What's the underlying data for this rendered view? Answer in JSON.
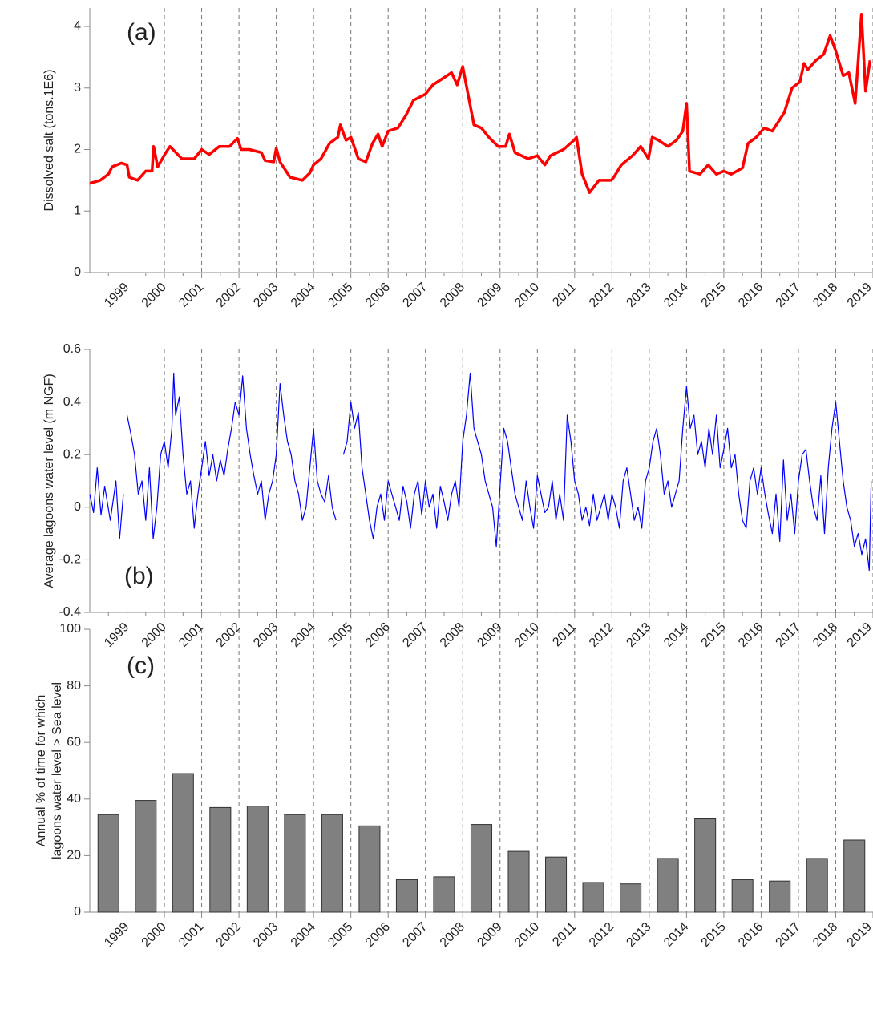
{
  "chart_data": [
    {
      "type": "line",
      "annotation": "(a)",
      "ylabel": [
        "Dissolved salt (tons.1E6)"
      ],
      "color": "#ff0000",
      "xlim": [
        1998,
        2019
      ],
      "xticks": [
        1999,
        2000,
        2001,
        2002,
        2003,
        2004,
        2005,
        2006,
        2007,
        2008,
        2009,
        2010,
        2011,
        2012,
        2013,
        2014,
        2015,
        2016,
        2017,
        2018,
        2019
      ],
      "ylim": [
        0,
        4.3
      ],
      "yticks": [
        0,
        1,
        2,
        3,
        4
      ],
      "grid": true,
      "x": [
        1998.0,
        1998.28,
        1998.5,
        1998.6,
        1998.85,
        1999.0,
        1999.06,
        1999.28,
        1999.5,
        1999.67,
        1999.71,
        1999.82,
        2000.04,
        2000.15,
        2000.47,
        2000.8,
        2001.0,
        2001.2,
        2001.47,
        2001.75,
        2001.96,
        2002.06,
        2002.28,
        2002.6,
        2002.7,
        2002.93,
        2003.0,
        2003.1,
        2003.37,
        2003.7,
        2003.9,
        2004.0,
        2004.2,
        2004.43,
        2004.65,
        2004.72,
        2004.87,
        2005.0,
        2005.2,
        2005.4,
        2005.58,
        2005.73,
        2005.84,
        2006.0,
        2006.26,
        2006.47,
        2006.68,
        2007.0,
        2007.2,
        2007.7,
        2007.85,
        2008.0,
        2008.3,
        2008.5,
        2008.7,
        2008.95,
        2009.15,
        2009.25,
        2009.4,
        2009.75,
        2010.0,
        2010.2,
        2010.35,
        2010.7,
        2010.98,
        2011.05,
        2011.2,
        2011.4,
        2011.65,
        2011.98,
        2012.05,
        2012.25,
        2012.55,
        2012.77,
        2012.98,
        2013.08,
        2013.25,
        2013.5,
        2013.73,
        2013.9,
        2014.0,
        2014.08,
        2014.36,
        2014.58,
        2014.8,
        2015.0,
        2015.2,
        2015.5,
        2015.65,
        2015.87,
        2016.08,
        2016.3,
        2016.62,
        2016.83,
        2017.04,
        2017.15,
        2017.25,
        2017.47,
        2017.68,
        2017.85,
        2018.0,
        2018.2,
        2018.35,
        2018.52,
        2018.69,
        2018.8,
        2018.92
      ],
      "values": [
        1.45,
        1.5,
        1.6,
        1.72,
        1.78,
        1.75,
        1.55,
        1.5,
        1.65,
        1.65,
        2.05,
        1.72,
        1.95,
        2.05,
        1.85,
        1.85,
        2.0,
        1.92,
        2.05,
        2.05,
        2.18,
        2.0,
        2.0,
        1.95,
        1.82,
        1.8,
        2.02,
        1.8,
        1.55,
        1.5,
        1.62,
        1.75,
        1.85,
        2.1,
        2.2,
        2.4,
        2.15,
        2.2,
        1.85,
        1.8,
        2.1,
        2.25,
        2.05,
        2.3,
        2.35,
        2.55,
        2.8,
        2.9,
        3.05,
        3.25,
        3.05,
        3.35,
        2.4,
        2.35,
        2.2,
        2.05,
        2.05,
        2.25,
        1.95,
        1.85,
        1.9,
        1.75,
        1.9,
        2.0,
        2.15,
        2.2,
        1.6,
        1.3,
        1.5,
        1.5,
        1.55,
        1.75,
        1.9,
        2.05,
        1.85,
        2.2,
        2.15,
        2.05,
        2.15,
        2.3,
        2.75,
        1.65,
        1.6,
        1.75,
        1.6,
        1.65,
        1.6,
        1.7,
        2.1,
        2.2,
        2.35,
        2.3,
        2.6,
        3.0,
        3.1,
        3.4,
        3.3,
        3.45,
        3.55,
        3.85,
        3.6,
        3.2,
        3.25,
        2.75,
        4.2,
        2.95,
        3.45
      ]
    },
    {
      "type": "line",
      "annotation": "(b)",
      "ylabel": [
        "Average lagoons water level (m NGF)"
      ],
      "color": "#0000ff",
      "xlim": [
        1998,
        2019
      ],
      "xticks": [
        1999,
        2000,
        2001,
        2002,
        2003,
        2004,
        2005,
        2006,
        2007,
        2008,
        2009,
        2010,
        2011,
        2012,
        2013,
        2014,
        2015,
        2016,
        2017,
        2018,
        2019
      ],
      "ylim": [
        -0.4,
        0.6
      ],
      "yticks": [
        -0.4,
        -0.2,
        0,
        0.2,
        0.4,
        0.6
      ],
      "grid": true,
      "x": [
        1998.0,
        1998.1,
        1998.2,
        1998.3,
        1998.4,
        1998.55,
        1998.7,
        1998.8,
        1998.9,
        1998.95,
        1999.0,
        1999.1,
        1999.2,
        1999.3,
        1999.4,
        1999.5,
        1999.6,
        1999.7,
        1999.8,
        1999.9,
        2000.0,
        2000.1,
        2000.2,
        2000.25,
        2000.3,
        2000.4,
        2000.5,
        2000.6,
        2000.7,
        2000.8,
        2000.9,
        2001.0,
        2001.1,
        2001.2,
        2001.3,
        2001.4,
        2001.5,
        2001.6,
        2001.7,
        2001.8,
        2001.9,
        2002.0,
        2002.1,
        2002.2,
        2002.3,
        2002.4,
        2002.5,
        2002.6,
        2002.7,
        2002.8,
        2002.9,
        2003.0,
        2003.1,
        2003.2,
        2003.3,
        2003.4,
        2003.5,
        2003.6,
        2003.7,
        2003.8,
        2003.9,
        2004.0,
        2004.1,
        2004.2,
        2004.3,
        2004.4,
        2004.5,
        2004.6,
        2004.7,
        2004.8,
        2004.9,
        2005.0,
        2005.1,
        2005.2,
        2005.3,
        2005.4,
        2005.5,
        2005.6,
        2005.7,
        2005.8,
        2005.9,
        2006.0,
        2006.1,
        2006.2,
        2006.3,
        2006.4,
        2006.5,
        2006.6,
        2006.7,
        2006.8,
        2006.9,
        2007.0,
        2007.1,
        2007.2,
        2007.3,
        2007.4,
        2007.5,
        2007.6,
        2007.7,
        2007.8,
        2007.9,
        2008.0,
        2008.1,
        2008.2,
        2008.3,
        2008.4,
        2008.5,
        2008.6,
        2008.7,
        2008.8,
        2008.9,
        2009.0,
        2009.1,
        2009.2,
        2009.3,
        2009.4,
        2009.5,
        2009.6,
        2009.7,
        2009.8,
        2009.9,
        2010.0,
        2010.1,
        2010.2,
        2010.3,
        2010.4,
        2010.5,
        2010.6,
        2010.7,
        2010.8,
        2010.9,
        2011.0,
        2011.1,
        2011.2,
        2011.3,
        2011.4,
        2011.5,
        2011.6,
        2011.7,
        2011.8,
        2011.9,
        2012.0,
        2012.1,
        2012.2,
        2012.3,
        2012.4,
        2012.5,
        2012.6,
        2012.7,
        2012.8,
        2012.9,
        2013.0,
        2013.1,
        2013.2,
        2013.3,
        2013.4,
        2013.5,
        2013.6,
        2013.7,
        2013.8,
        2013.9,
        2014.0,
        2014.1,
        2014.2,
        2014.3,
        2014.4,
        2014.5,
        2014.6,
        2014.7,
        2014.8,
        2014.9,
        2015.0,
        2015.1,
        2015.2,
        2015.3,
        2015.4,
        2015.5,
        2015.6,
        2015.7,
        2015.8,
        2015.9,
        2016.0,
        2016.1,
        2016.2,
        2016.3,
        2016.4,
        2016.5,
        2016.6,
        2016.7,
        2016.8,
        2016.9,
        2017.0,
        2017.1,
        2017.2,
        2017.3,
        2017.4,
        2017.5,
        2017.6,
        2017.7,
        2017.8,
        2017.9,
        2018.0,
        2018.1,
        2018.2,
        2018.3,
        2018.4,
        2018.5,
        2018.6,
        2018.7,
        2018.8,
        2018.9,
        2018.95
      ],
      "values": [
        0.05,
        -0.02,
        0.15,
        -0.03,
        0.08,
        -0.05,
        0.1,
        -0.12,
        0.05,
        null,
        0.35,
        0.28,
        0.2,
        0.05,
        0.1,
        -0.05,
        0.15,
        -0.12,
        0.0,
        0.2,
        0.25,
        0.15,
        0.3,
        0.51,
        0.35,
        0.42,
        0.2,
        0.05,
        0.1,
        -0.08,
        0.05,
        0.15,
        0.25,
        0.12,
        0.2,
        0.1,
        0.18,
        0.12,
        0.22,
        0.3,
        0.4,
        0.35,
        0.5,
        0.3,
        0.2,
        0.12,
        0.05,
        0.1,
        -0.05,
        0.05,
        0.1,
        0.2,
        0.47,
        0.35,
        0.25,
        0.2,
        0.1,
        0.05,
        -0.05,
        0.0,
        0.15,
        0.3,
        0.1,
        0.05,
        0.02,
        0.12,
        0.0,
        -0.05,
        null,
        0.2,
        0.25,
        0.4,
        0.3,
        0.36,
        0.15,
        0.05,
        -0.05,
        -0.12,
        0.0,
        0.05,
        -0.05,
        0.1,
        0.05,
        0.0,
        -0.05,
        0.08,
        0.02,
        -0.08,
        0.05,
        0.1,
        -0.03,
        0.1,
        0.0,
        0.05,
        -0.08,
        0.08,
        0.02,
        -0.05,
        0.05,
        0.1,
        0.0,
        0.25,
        0.35,
        0.51,
        0.3,
        0.25,
        0.2,
        0.1,
        0.05,
        0.0,
        -0.15,
        0.08,
        0.3,
        0.25,
        0.15,
        0.05,
        0.0,
        -0.05,
        0.1,
        0.0,
        -0.08,
        0.12,
        0.05,
        -0.02,
        0.0,
        0.1,
        -0.05,
        0.05,
        -0.05,
        0.35,
        0.25,
        0.1,
        0.05,
        -0.05,
        0.0,
        -0.07,
        0.05,
        -0.05,
        0.0,
        0.05,
        -0.05,
        0.05,
        0.0,
        -0.08,
        0.1,
        0.15,
        0.05,
        -0.05,
        0.0,
        -0.08,
        0.1,
        0.15,
        0.25,
        0.3,
        0.2,
        0.05,
        0.1,
        0.0,
        0.05,
        0.1,
        0.3,
        0.46,
        0.3,
        0.35,
        0.2,
        0.25,
        0.15,
        0.3,
        0.2,
        0.35,
        0.15,
        0.22,
        0.3,
        0.15,
        0.2,
        0.05,
        -0.05,
        -0.08,
        0.1,
        0.15,
        0.05,
        0.15,
        0.05,
        -0.03,
        -0.1,
        0.05,
        -0.13,
        0.18,
        -0.05,
        0.05,
        -0.1,
        0.1,
        0.2,
        0.22,
        0.1,
        0.0,
        -0.05,
        0.12,
        -0.1,
        0.15,
        0.3,
        0.4,
        0.25,
        0.1,
        0.0,
        -0.05,
        -0.15,
        -0.1,
        -0.18,
        -0.12,
        -0.24,
        0.1
      ]
    },
    {
      "type": "bar",
      "annotation": "(c)",
      "ylabel": [
        "Annual % of time for which",
        "lagoons water level > Sea level"
      ],
      "color": "#808080",
      "categories": [
        "1999",
        "2000",
        "2001",
        "2002",
        "2003",
        "2004",
        "2005",
        "2006",
        "2007",
        "2008",
        "2009",
        "2010",
        "2011",
        "2012",
        "2013",
        "2014",
        "2015",
        "2016",
        "2017",
        "2018",
        "2019"
      ],
      "values": [
        34.5,
        39.5,
        49,
        37,
        37.5,
        34.5,
        34.5,
        30.5,
        11.5,
        12.5,
        31,
        21.5,
        19.5,
        10.5,
        10,
        19,
        33,
        11.5,
        11,
        19,
        25.5
      ],
      "ylim": [
        0,
        100
      ],
      "yticks": [
        0,
        20,
        40,
        60,
        80,
        100
      ],
      "grid": true
    }
  ]
}
